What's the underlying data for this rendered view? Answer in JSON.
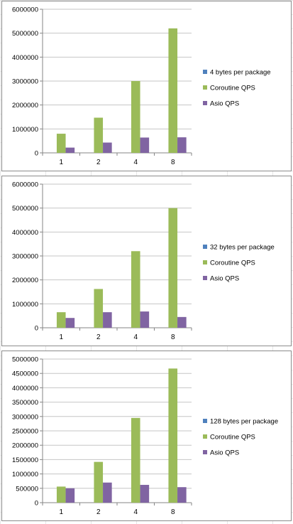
{
  "chart_data": [
    {
      "type": "bar",
      "categories": [
        "1",
        "2",
        "4",
        "8"
      ],
      "ylim": [
        0,
        6000000
      ],
      "yticks": [
        "0",
        "1000000",
        "2000000",
        "3000000",
        "4000000",
        "5000000",
        "6000000"
      ],
      "grid": "horizontal",
      "legend_position": "right",
      "series": [
        {
          "name": "4 bytes per package",
          "color": "#4F81BD",
          "values": [
            0,
            0,
            0,
            0
          ]
        },
        {
          "name": "Coroutine QPS",
          "color": "#9BBB59",
          "values": [
            800000,
            1470000,
            3000000,
            5200000
          ]
        },
        {
          "name": "Asio QPS",
          "color": "#8064A2",
          "values": [
            220000,
            430000,
            640000,
            650000
          ]
        }
      ]
    },
    {
      "type": "bar",
      "categories": [
        "1",
        "2",
        "4",
        "8"
      ],
      "ylim": [
        0,
        6000000
      ],
      "yticks": [
        "0",
        "1000000",
        "2000000",
        "3000000",
        "4000000",
        "5000000",
        "6000000"
      ],
      "grid": "horizontal",
      "legend_position": "right",
      "series": [
        {
          "name": "32 bytes per package",
          "color": "#4F81BD",
          "values": [
            0,
            0,
            0,
            0
          ]
        },
        {
          "name": "Coroutine QPS",
          "color": "#9BBB59",
          "values": [
            650000,
            1620000,
            3200000,
            5000000
          ]
        },
        {
          "name": "Asio QPS",
          "color": "#8064A2",
          "values": [
            410000,
            650000,
            680000,
            450000
          ]
        }
      ]
    },
    {
      "type": "bar",
      "categories": [
        "1",
        "2",
        "4",
        "8"
      ],
      "ylim": [
        0,
        5000000
      ],
      "yticks": [
        "0",
        "500000",
        "1000000",
        "1500000",
        "2000000",
        "2500000",
        "3000000",
        "3500000",
        "4000000",
        "4500000",
        "5000000"
      ],
      "grid": "horizontal",
      "legend_position": "right",
      "series": [
        {
          "name": "128 bytes per package",
          "color": "#4F81BD",
          "values": [
            0,
            0,
            0,
            0
          ]
        },
        {
          "name": "Coroutine QPS",
          "color": "#9BBB59",
          "values": [
            560000,
            1420000,
            2950000,
            4670000
          ]
        },
        {
          "name": "Asio QPS",
          "color": "#8064A2",
          "values": [
            500000,
            700000,
            620000,
            540000
          ]
        }
      ]
    }
  ]
}
